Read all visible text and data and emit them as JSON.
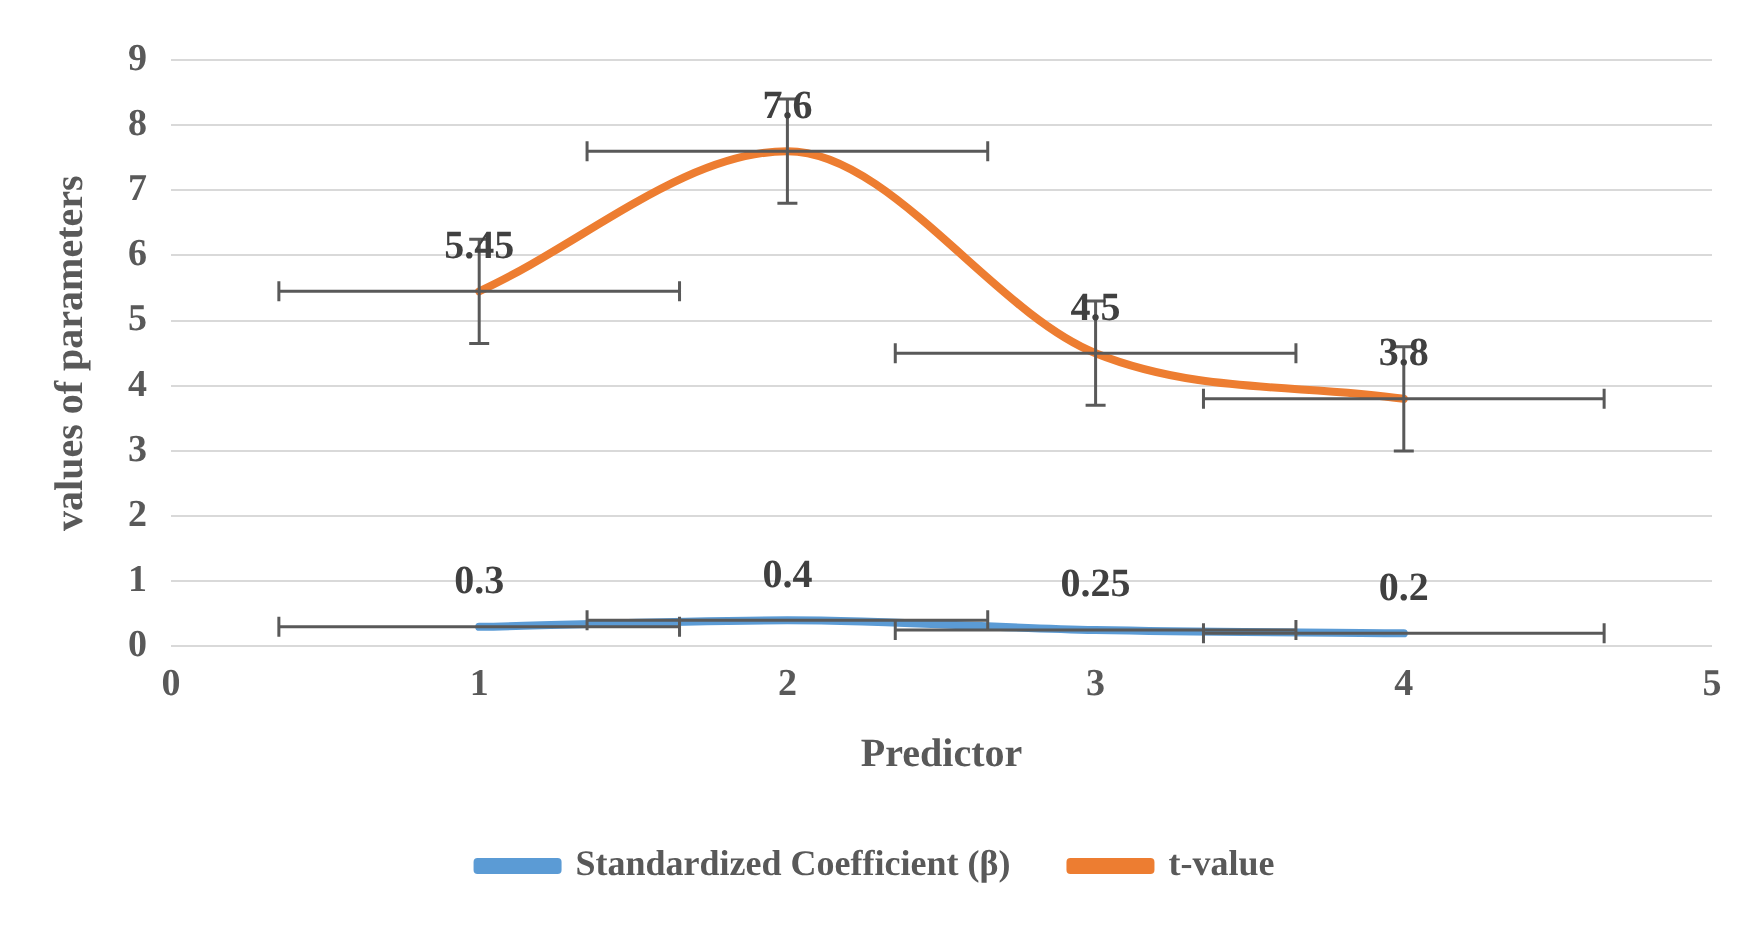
{
  "chart_data": {
    "type": "line",
    "xlabel": "Predictor",
    "ylabel": "values of parameters",
    "x": [
      1,
      2,
      3,
      4
    ],
    "series": [
      {
        "name": "Standardized Coefficient (β)",
        "color": "#5b9bd5",
        "values": [
          0.3,
          0.4,
          0.25,
          0.2
        ],
        "xerrors": [
          0.65,
          0.65,
          0.65,
          0.65
        ]
      },
      {
        "name": "t-value",
        "color": "#ed7d31",
        "values": [
          5.45,
          7.6,
          4.5,
          3.8
        ],
        "errors": [
          0.8,
          0.8,
          0.8,
          0.8
        ],
        "xerrors": [
          0.65,
          0.65,
          0.65,
          0.65
        ]
      }
    ],
    "xlim": [
      0,
      5
    ],
    "xticks": [
      0,
      1,
      2,
      3,
      4,
      5
    ],
    "ylim": [
      0,
      9
    ],
    "yticks": [
      0,
      1,
      2,
      3,
      4,
      5,
      6,
      7,
      8,
      9
    ],
    "grid": "y",
    "legend": "bottom",
    "marker": "none",
    "line_style": "solid",
    "data_labels": true
  }
}
